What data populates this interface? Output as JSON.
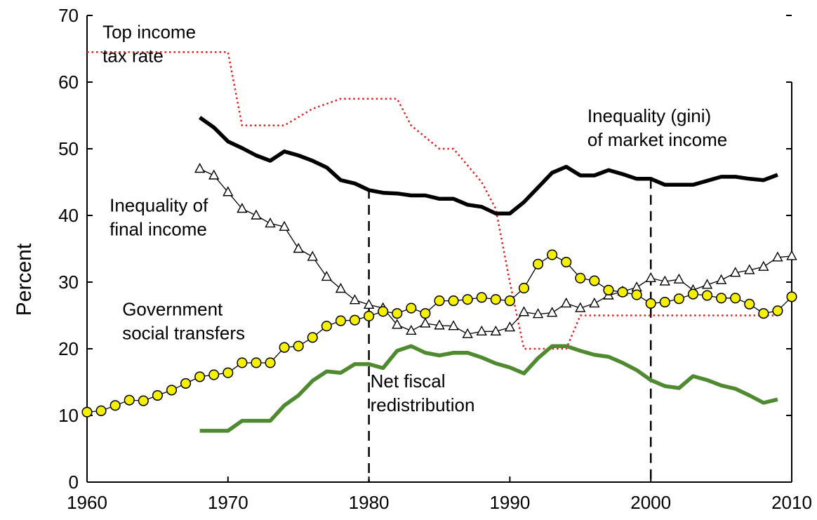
{
  "chart_data": {
    "type": "line",
    "xlabel": "",
    "ylabel": "Percent",
    "xlim": [
      1960,
      2010
    ],
    "ylim": [
      0,
      70
    ],
    "xticks": [
      1960,
      1970,
      1980,
      1990,
      2000,
      2010
    ],
    "yticks": [
      0,
      10,
      20,
      30,
      40,
      50,
      60,
      70
    ],
    "grid": false,
    "legend": "none",
    "reference_lines_x": [
      1980,
      2000
    ],
    "series": [
      {
        "key": "top_tax",
        "color": "#e02020",
        "style": "dotted",
        "points": [
          [
            1960,
            64.5
          ],
          [
            1970,
            64.5
          ],
          [
            1971,
            53.5
          ],
          [
            1974,
            53.5
          ],
          [
            1976,
            56
          ],
          [
            1978,
            57.5
          ],
          [
            1982,
            57.5
          ],
          [
            1983,
            53.5
          ],
          [
            1985,
            50
          ],
          [
            1986,
            50
          ],
          [
            1988,
            45
          ],
          [
            1989,
            41
          ],
          [
            1990,
            30
          ],
          [
            1991,
            20
          ],
          [
            1994,
            20
          ],
          [
            1995,
            25
          ],
          [
            2009,
            25
          ]
        ]
      },
      {
        "key": "gini_market",
        "color": "#000000",
        "style": "thick",
        "points": [
          [
            1968,
            54.7
          ],
          [
            1969,
            53.2
          ],
          [
            1970,
            51.1
          ],
          [
            1971,
            50.1
          ],
          [
            1972,
            49
          ],
          [
            1973,
            48.2
          ],
          [
            1974,
            49.6
          ],
          [
            1975,
            49
          ],
          [
            1976,
            48.2
          ],
          [
            1977,
            47.2
          ],
          [
            1978,
            45.3
          ],
          [
            1979,
            44.8
          ],
          [
            1980,
            43.8
          ],
          [
            1981,
            43.4
          ],
          [
            1982,
            43.3
          ],
          [
            1983,
            43
          ],
          [
            1984,
            43
          ],
          [
            1985,
            42.5
          ],
          [
            1986,
            42.5
          ],
          [
            1987,
            41.6
          ],
          [
            1988,
            41.3
          ],
          [
            1989,
            40.3
          ],
          [
            1990,
            40.3
          ],
          [
            1991,
            42
          ],
          [
            1992,
            44.2
          ],
          [
            1993,
            46.4
          ],
          [
            1994,
            47.3
          ],
          [
            1995,
            46
          ],
          [
            1996,
            46
          ],
          [
            1997,
            46.8
          ],
          [
            1998,
            46.2
          ],
          [
            1999,
            45.5
          ],
          [
            2000,
            45.5
          ],
          [
            2001,
            44.6
          ],
          [
            2002,
            44.6
          ],
          [
            2003,
            44.6
          ],
          [
            2004,
            45.2
          ],
          [
            2005,
            45.8
          ],
          [
            2006,
            45.8
          ],
          [
            2007,
            45.5
          ],
          [
            2008,
            45.3
          ],
          [
            2009,
            46.1
          ]
        ]
      },
      {
        "key": "gini_final",
        "color": "#000000",
        "style": "triangles",
        "points": [
          [
            1968,
            47
          ],
          [
            1969,
            46
          ],
          [
            1970,
            43.5
          ],
          [
            1971,
            41
          ],
          [
            1972,
            40
          ],
          [
            1973,
            38.8
          ],
          [
            1974,
            38.3
          ],
          [
            1975,
            35
          ],
          [
            1976,
            33.8
          ],
          [
            1977,
            30.8
          ],
          [
            1978,
            29
          ],
          [
            1979,
            27.3
          ],
          [
            1980,
            26.6
          ],
          [
            1981,
            26.1
          ],
          [
            1982,
            23.6
          ],
          [
            1983,
            22.7
          ],
          [
            1984,
            23.8
          ],
          [
            1985,
            23.5
          ],
          [
            1986,
            23.4
          ],
          [
            1987,
            22.2
          ],
          [
            1988,
            22.6
          ],
          [
            1989,
            22.6
          ],
          [
            1990,
            23.2
          ],
          [
            1991,
            25.5
          ],
          [
            1992,
            25.2
          ],
          [
            1993,
            25.4
          ],
          [
            1994,
            26.8
          ],
          [
            1995,
            26.1
          ],
          [
            1996,
            26.8
          ],
          [
            1997,
            28
          ],
          [
            1998,
            28.6
          ],
          [
            1999,
            29.2
          ],
          [
            2000,
            30.6
          ],
          [
            2001,
            30.1
          ],
          [
            2002,
            30.4
          ],
          [
            2003,
            28.8
          ],
          [
            2004,
            29.6
          ],
          [
            2005,
            30.3
          ],
          [
            2006,
            31.4
          ],
          [
            2007,
            31.8
          ],
          [
            2008,
            32.3
          ],
          [
            2009,
            33.7
          ],
          [
            2010,
            33.9
          ]
        ]
      },
      {
        "key": "gov_transfers",
        "color": "#000000",
        "marker_fill": "#f5f000",
        "style": "circles",
        "points": [
          [
            1960,
            10.5
          ],
          [
            1961,
            10.7
          ],
          [
            1962,
            11.5
          ],
          [
            1963,
            12.3
          ],
          [
            1964,
            12.2
          ],
          [
            1965,
            13
          ],
          [
            1966,
            13.8
          ],
          [
            1967,
            14.8
          ],
          [
            1968,
            15.8
          ],
          [
            1969,
            16.1
          ],
          [
            1970,
            16.4
          ],
          [
            1971,
            17.9
          ],
          [
            1972,
            17.9
          ],
          [
            1973,
            17.9
          ],
          [
            1974,
            20.2
          ],
          [
            1975,
            20.4
          ],
          [
            1976,
            21.7
          ],
          [
            1977,
            23.4
          ],
          [
            1978,
            24.2
          ],
          [
            1979,
            24.3
          ],
          [
            1980,
            24.9
          ],
          [
            1981,
            25.6
          ],
          [
            1982,
            25.3
          ],
          [
            1983,
            26.1
          ],
          [
            1984,
            25.3
          ],
          [
            1985,
            27.2
          ],
          [
            1986,
            27.2
          ],
          [
            1987,
            27.4
          ],
          [
            1988,
            27.7
          ],
          [
            1989,
            27.4
          ],
          [
            1990,
            27.2
          ],
          [
            1991,
            29.1
          ],
          [
            1992,
            32.7
          ],
          [
            1993,
            34.1
          ],
          [
            1994,
            33
          ],
          [
            1995,
            30.6
          ],
          [
            1996,
            30.2
          ],
          [
            1997,
            28.8
          ],
          [
            1998,
            28.5
          ],
          [
            1999,
            28.1
          ],
          [
            2000,
            26.8
          ],
          [
            2001,
            27
          ],
          [
            2002,
            27.5
          ],
          [
            2003,
            28.2
          ],
          [
            2004,
            28
          ],
          [
            2005,
            27.6
          ],
          [
            2006,
            27.6
          ],
          [
            2007,
            26.7
          ],
          [
            2008,
            25.3
          ],
          [
            2009,
            25.7
          ],
          [
            2010,
            27.8
          ]
        ]
      },
      {
        "key": "net_fiscal",
        "color": "#4f8a30",
        "style": "thick",
        "points": [
          [
            1968,
            7.7
          ],
          [
            1970,
            7.7
          ],
          [
            1971,
            9.2
          ],
          [
            1973,
            9.2
          ],
          [
            1974,
            11.5
          ],
          [
            1975,
            13
          ],
          [
            1976,
            15.2
          ],
          [
            1977,
            16.6
          ],
          [
            1978,
            16.4
          ],
          [
            1979,
            17.7
          ],
          [
            1980,
            17.7
          ],
          [
            1981,
            17.1
          ],
          [
            1982,
            19.7
          ],
          [
            1983,
            20.4
          ],
          [
            1984,
            19.4
          ],
          [
            1985,
            19
          ],
          [
            1986,
            19.4
          ],
          [
            1987,
            19.4
          ],
          [
            1988,
            18.7
          ],
          [
            1989,
            17.8
          ],
          [
            1990,
            17.2
          ],
          [
            1991,
            16.3
          ],
          [
            1992,
            18.6
          ],
          [
            1993,
            20.4
          ],
          [
            1994,
            20.4
          ],
          [
            1995,
            19.7
          ],
          [
            1996,
            19.1
          ],
          [
            1997,
            18.8
          ],
          [
            1998,
            17.9
          ],
          [
            1999,
            16.8
          ],
          [
            2000,
            15.3
          ],
          [
            2001,
            14.4
          ],
          [
            2002,
            14.1
          ],
          [
            2003,
            15.9
          ],
          [
            2004,
            15.3
          ],
          [
            2005,
            14.5
          ],
          [
            2006,
            14
          ],
          [
            2007,
            13
          ],
          [
            2008,
            11.9
          ],
          [
            2009,
            12.4
          ]
        ]
      }
    ],
    "annotations": [
      {
        "key": "top_tax",
        "lines": [
          "Top income",
          "tax rate"
        ],
        "x": 1961.1,
        "y": 66.6
      },
      {
        "key": "gini_market",
        "lines": [
          "Inequality (gini)",
          "of market income"
        ],
        "x": 1995.5,
        "y": 54.0
      },
      {
        "key": "gini_final",
        "lines": [
          "Inequality of",
          "final income"
        ],
        "x": 1961.6,
        "y": 40.6
      },
      {
        "key": "gov_transfers",
        "lines": [
          "Government",
          "social transfers"
        ],
        "x": 1962.5,
        "y": 25.0
      },
      {
        "key": "net_fiscal",
        "lines": [
          "Net fiscal",
          "redistribution"
        ],
        "x": 1980.1,
        "y": 14.2
      }
    ]
  }
}
